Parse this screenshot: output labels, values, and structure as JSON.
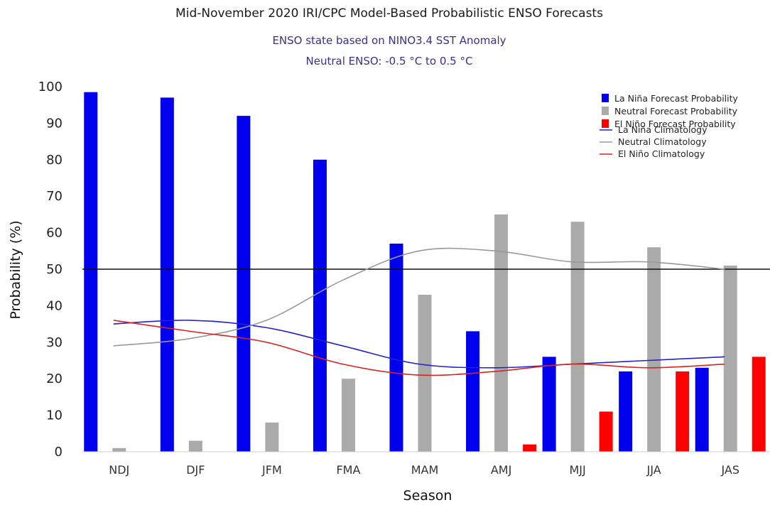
{
  "chart_data": {
    "type": "bar",
    "title": "Mid-November 2020 IRI/CPC Model-Based Probabilistic ENSO Forecasts",
    "subtitle_lines": [
      "ENSO state based on NINO3.4 SST Anomaly",
      "Neutral ENSO: -0.5 °C to 0.5 °C"
    ],
    "xlabel": "Season",
    "ylabel": "Probability (%)",
    "ylim": [
      0,
      100
    ],
    "yticks": [
      0,
      10,
      20,
      30,
      40,
      50,
      60,
      70,
      80,
      90,
      100
    ],
    "reference_line": 50,
    "categories": [
      "NDJ",
      "DJF",
      "JFM",
      "FMA",
      "MAM",
      "AMJ",
      "MJJ",
      "JJA",
      "JAS"
    ],
    "series": [
      {
        "name": "La Niña Forecast Probability",
        "color": "#0000ee",
        "values": [
          98.5,
          97,
          92,
          80,
          57,
          33,
          26,
          22,
          23
        ]
      },
      {
        "name": "Neutral Forecast Probability",
        "color": "#aaaaaa",
        "values": [
          1,
          3,
          8,
          20,
          43,
          65,
          63,
          56,
          51
        ]
      },
      {
        "name": "El Niño Forecast Probability",
        "color": "#ff0000",
        "values": [
          0,
          0,
          0,
          0,
          0,
          2,
          11,
          22,
          26
        ]
      }
    ],
    "climatology": [
      {
        "name": "La Niña Climatology",
        "color": "#2222cc",
        "values": [
          35,
          36,
          34,
          29,
          24,
          23,
          24,
          25,
          26
        ]
      },
      {
        "name": "Neutral Climatology",
        "color": "#999999",
        "values": [
          29,
          31,
          36,
          47,
          55,
          55,
          52,
          52,
          50
        ]
      },
      {
        "name": "El Niño Climatology",
        "color": "#dd2222",
        "values": [
          36,
          33,
          30,
          24,
          21,
          22,
          24,
          23,
          24
        ]
      }
    ],
    "legend_position": "top-right",
    "grid": false
  }
}
